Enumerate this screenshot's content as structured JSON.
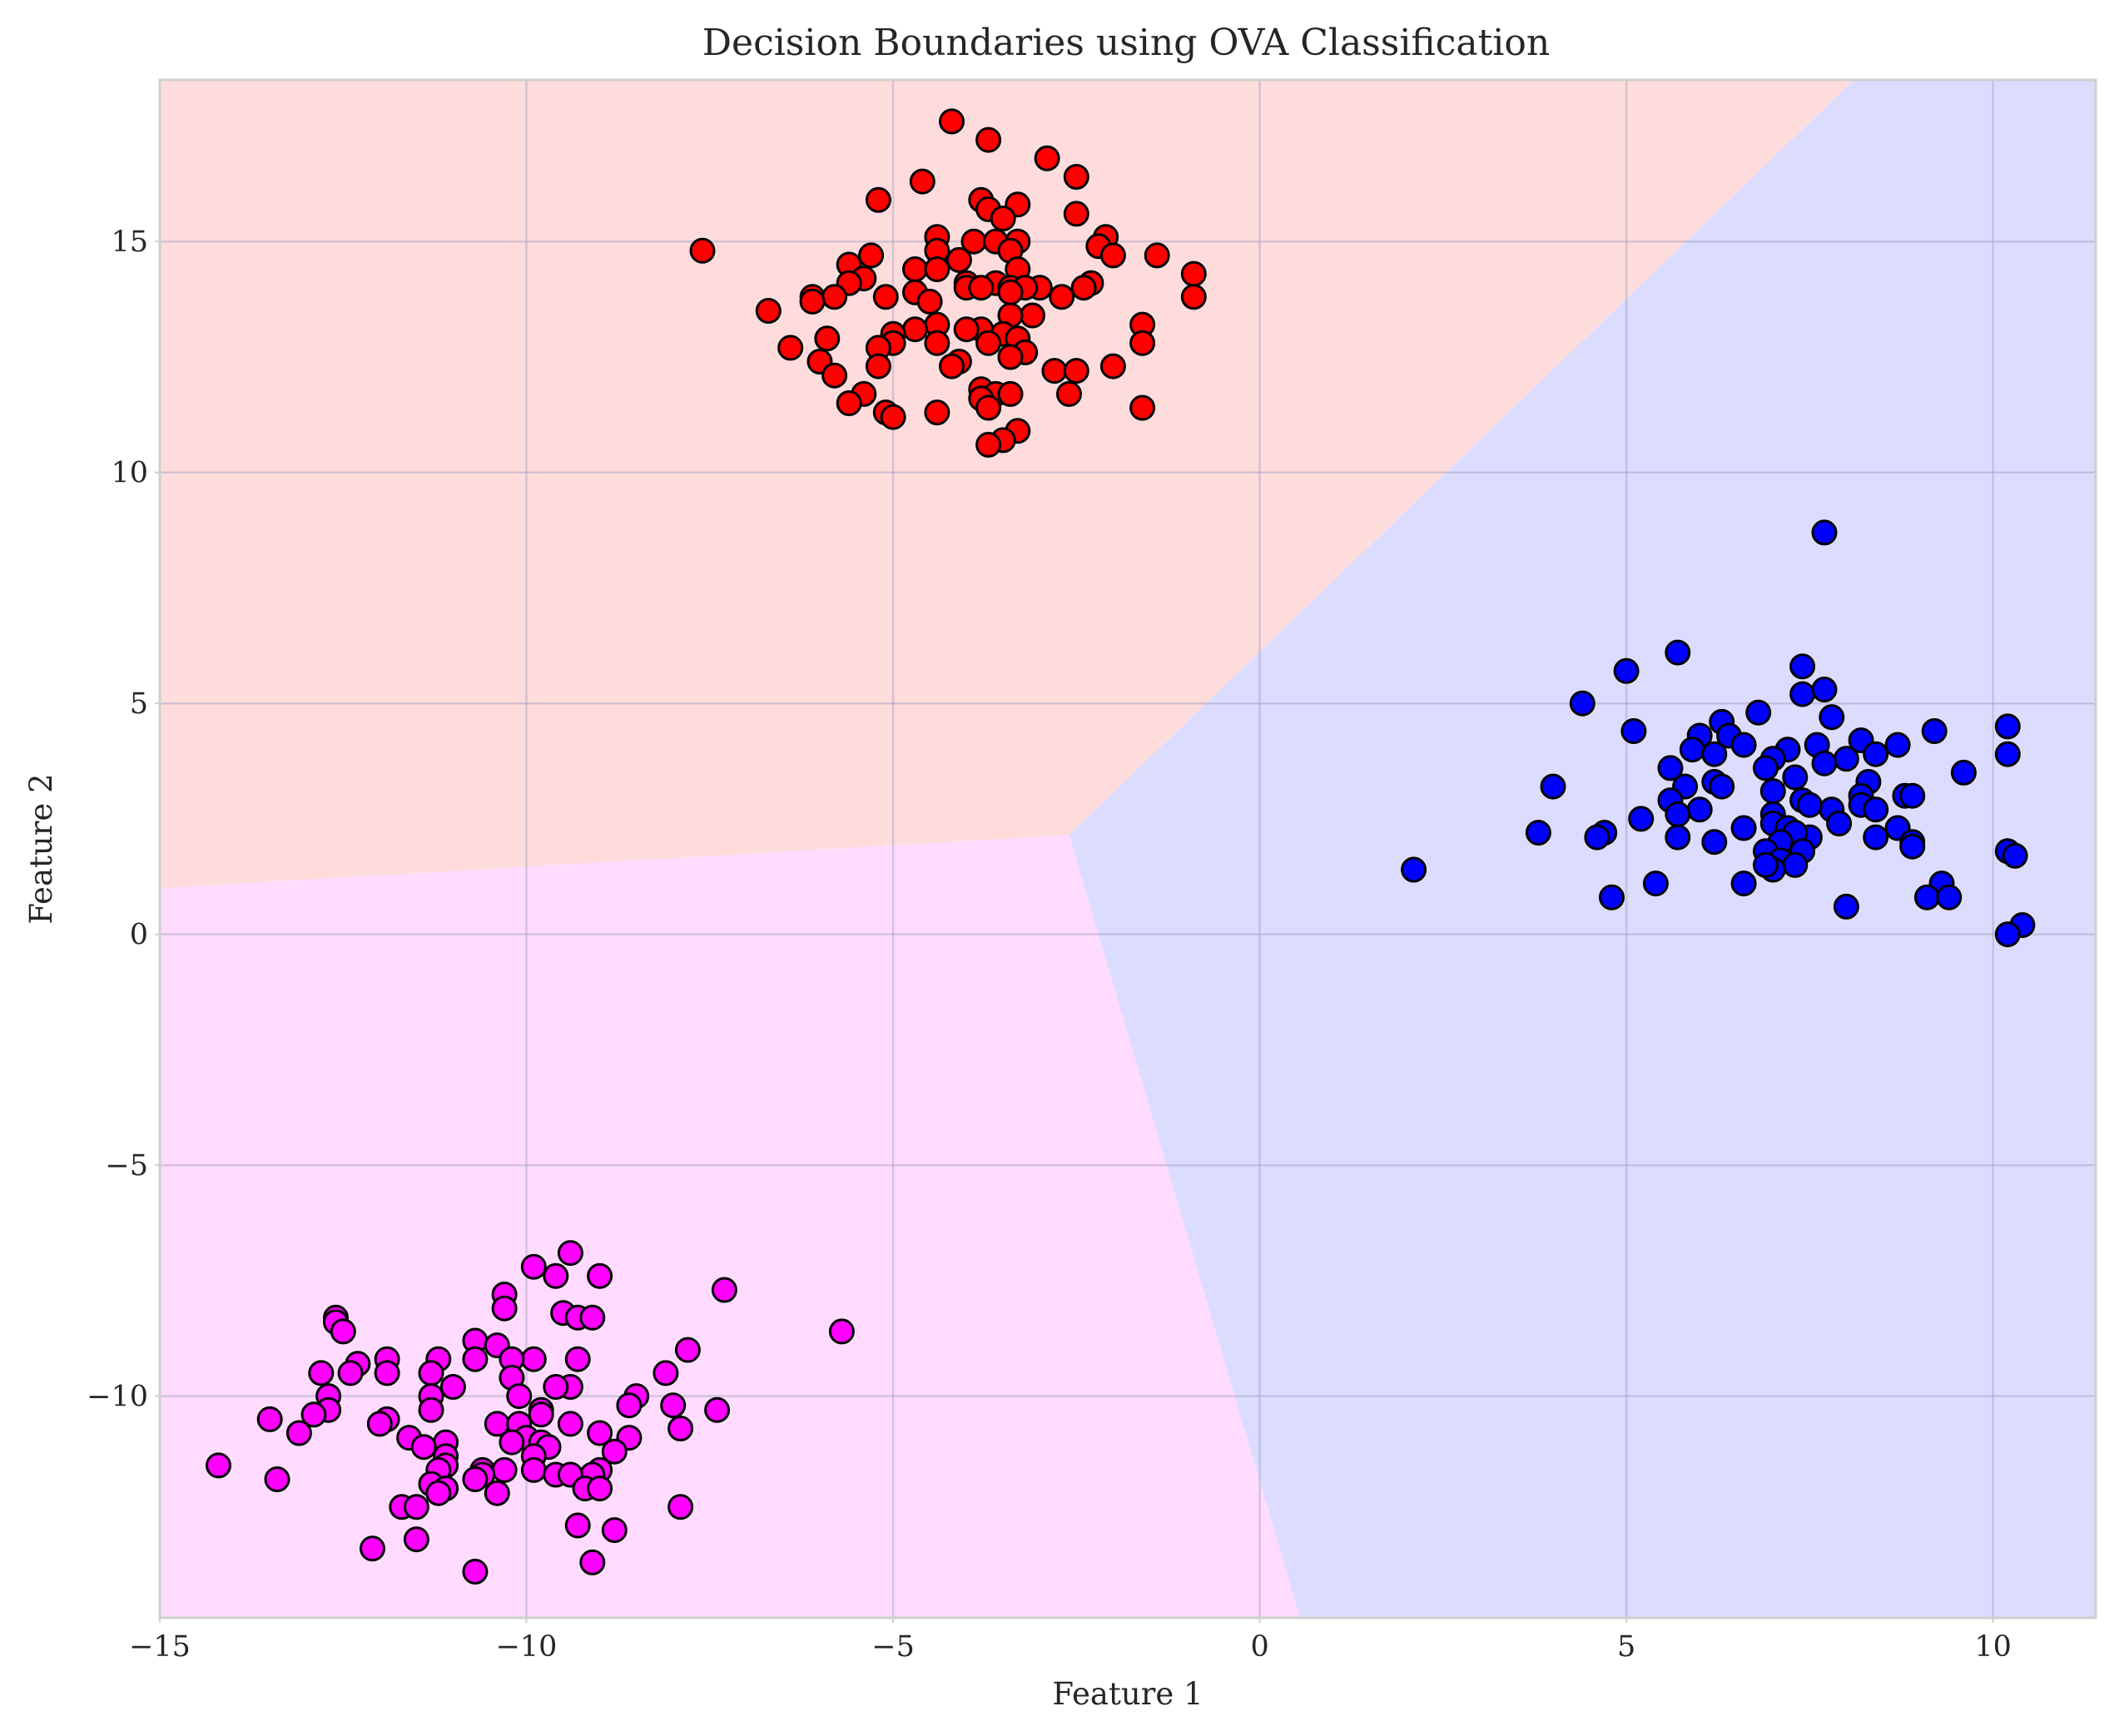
{
  "chart_data": {
    "type": "scatter",
    "title": "Decision Boundaries using OVA Classification",
    "xlabel": "Feature 1",
    "ylabel": "Feature 2",
    "xlim": [
      -15,
      11.4
    ],
    "ylim": [
      -14.8,
      18.5
    ],
    "xticks": [
      -15,
      -10,
      -5,
      0,
      5,
      10
    ],
    "yticks": [
      -10,
      -5,
      0,
      5,
      10,
      15
    ],
    "xtick_labels": [
      "−15",
      "−10",
      "−5",
      "0",
      "5",
      "10"
    ],
    "ytick_labels": [
      "−10",
      "−5",
      "0",
      "5",
      "10",
      "15"
    ],
    "grid": true,
    "regions": [
      {
        "color": "#ffdcdc",
        "polygon": [
          [
            -15,
            18.5
          ],
          [
            8.1,
            18.5
          ],
          [
            -2.6,
            2.15
          ],
          [
            -15,
            1.0
          ]
        ]
      },
      {
        "color": "#dcdcff",
        "polygon": [
          [
            8.1,
            18.5
          ],
          [
            11.4,
            18.5
          ],
          [
            11.4,
            -14.8
          ],
          [
            0.55,
            -14.8
          ],
          [
            -2.6,
            2.15
          ]
        ]
      },
      {
        "color": "#ffdcff",
        "polygon": [
          [
            -15,
            1.0
          ],
          [
            -2.6,
            2.15
          ],
          [
            0.55,
            -14.8
          ],
          [
            -15,
            -14.8
          ]
        ]
      }
    ],
    "series": [
      {
        "color": "#ff0000",
        "points": [
          [
            -4.2,
            17.6
          ],
          [
            -3.7,
            17.2
          ],
          [
            -2.9,
            16.8
          ],
          [
            -2.5,
            16.4
          ],
          [
            -4.6,
            16.3
          ],
          [
            -5.2,
            15.9
          ],
          [
            -3.8,
            15.9
          ],
          [
            -3.3,
            15.8
          ],
          [
            -3.7,
            15.7
          ],
          [
            -2.5,
            15.6
          ],
          [
            -3.5,
            15.5
          ],
          [
            -4.4,
            15.1
          ],
          [
            -2.1,
            15.1
          ],
          [
            -3.9,
            15.0
          ],
          [
            -3.6,
            15.0
          ],
          [
            -3.3,
            15.0
          ],
          [
            -2.2,
            14.9
          ],
          [
            -4.4,
            14.8
          ],
          [
            -3.4,
            14.8
          ],
          [
            -7.6,
            14.8
          ],
          [
            -5.3,
            14.7
          ],
          [
            -2.0,
            14.7
          ],
          [
            -1.4,
            14.7
          ],
          [
            -4.1,
            14.6
          ],
          [
            -5.6,
            14.5
          ],
          [
            -4.7,
            14.4
          ],
          [
            -4.4,
            14.4
          ],
          [
            -3.3,
            14.4
          ],
          [
            -5.4,
            14.2
          ],
          [
            -0.9,
            14.3
          ],
          [
            -2.3,
            14.1
          ],
          [
            -5.6,
            14.1
          ],
          [
            -4.0,
            14.1
          ],
          [
            -3.6,
            14.1
          ],
          [
            -3.4,
            14.0
          ],
          [
            -2.4,
            14.0
          ],
          [
            -3.0,
            14.0
          ],
          [
            -3.2,
            14.0
          ],
          [
            -4.0,
            14.0
          ],
          [
            -3.8,
            14.0
          ],
          [
            -6.1,
            13.8
          ],
          [
            -5.8,
            13.8
          ],
          [
            -5.1,
            13.8
          ],
          [
            -4.7,
            13.9
          ],
          [
            -4.5,
            13.7
          ],
          [
            -3.4,
            13.9
          ],
          [
            -2.7,
            13.8
          ],
          [
            -0.9,
            13.8
          ],
          [
            -6.1,
            13.7
          ],
          [
            -6.7,
            13.5
          ],
          [
            -3.1,
            13.4
          ],
          [
            -3.4,
            13.4
          ],
          [
            -4.4,
            13.2
          ],
          [
            -3.8,
            13.1
          ],
          [
            -4.7,
            13.1
          ],
          [
            -4.0,
            13.1
          ],
          [
            -3.5,
            13.0
          ],
          [
            -5.0,
            13.0
          ],
          [
            -1.6,
            13.2
          ],
          [
            -5.0,
            12.8
          ],
          [
            -5.9,
            12.9
          ],
          [
            -3.3,
            12.9
          ],
          [
            -3.7,
            12.8
          ],
          [
            -4.4,
            12.8
          ],
          [
            -1.6,
            12.8
          ],
          [
            -5.2,
            12.7
          ],
          [
            -6.4,
            12.7
          ],
          [
            -3.2,
            12.6
          ],
          [
            -3.4,
            12.5
          ],
          [
            -6.0,
            12.4
          ],
          [
            -4.1,
            12.4
          ],
          [
            -5.2,
            12.3
          ],
          [
            -4.2,
            12.3
          ],
          [
            -2.0,
            12.3
          ],
          [
            -2.8,
            12.2
          ],
          [
            -2.5,
            12.2
          ],
          [
            -5.8,
            12.1
          ],
          [
            -3.8,
            11.8
          ],
          [
            -5.4,
            11.7
          ],
          [
            -3.6,
            11.7
          ],
          [
            -3.4,
            11.7
          ],
          [
            -2.6,
            11.7
          ],
          [
            -3.8,
            11.6
          ],
          [
            -5.6,
            11.5
          ],
          [
            -1.6,
            11.4
          ],
          [
            -3.7,
            11.4
          ],
          [
            -4.4,
            11.3
          ],
          [
            -5.1,
            11.3
          ],
          [
            -5.0,
            11.2
          ],
          [
            -3.3,
            10.9
          ],
          [
            -3.5,
            10.7
          ],
          [
            -3.7,
            10.6
          ]
        ]
      },
      {
        "color": "#0000ff",
        "points": [
          [
            7.7,
            8.7
          ],
          [
            5.7,
            6.1
          ],
          [
            5.0,
            5.7
          ],
          [
            7.4,
            5.8
          ],
          [
            4.4,
            5.0
          ],
          [
            7.4,
            5.2
          ],
          [
            7.7,
            5.3
          ],
          [
            6.8,
            4.8
          ],
          [
            7.8,
            4.7
          ],
          [
            6.3,
            4.6
          ],
          [
            10.2,
            4.5
          ],
          [
            9.2,
            4.4
          ],
          [
            5.1,
            4.4
          ],
          [
            6.4,
            4.3
          ],
          [
            6.0,
            4.3
          ],
          [
            8.2,
            4.2
          ],
          [
            6.6,
            4.1
          ],
          [
            7.6,
            4.1
          ],
          [
            8.7,
            4.1
          ],
          [
            7.2,
            4.0
          ],
          [
            5.9,
            4.0
          ],
          [
            6.2,
            3.9
          ],
          [
            8.0,
            3.8
          ],
          [
            7.0,
            3.8
          ],
          [
            7.7,
            3.7
          ],
          [
            10.2,
            3.9
          ],
          [
            8.4,
            3.9
          ],
          [
            6.9,
            3.6
          ],
          [
            5.6,
            3.6
          ],
          [
            9.6,
            3.5
          ],
          [
            7.3,
            3.4
          ],
          [
            6.2,
            3.3
          ],
          [
            5.8,
            3.2
          ],
          [
            8.3,
            3.3
          ],
          [
            6.3,
            3.2
          ],
          [
            4.0,
            3.2
          ],
          [
            7.0,
            3.1
          ],
          [
            8.2,
            3.0
          ],
          [
            8.8,
            3.0
          ],
          [
            8.9,
            3.0
          ],
          [
            7.4,
            2.9
          ],
          [
            5.6,
            2.9
          ],
          [
            6.0,
            2.7
          ],
          [
            5.7,
            2.6
          ],
          [
            8.2,
            2.8
          ],
          [
            8.4,
            2.7
          ],
          [
            7.8,
            2.7
          ],
          [
            7.5,
            2.8
          ],
          [
            7.0,
            2.6
          ],
          [
            5.2,
            2.5
          ],
          [
            7.0,
            2.4
          ],
          [
            7.9,
            2.4
          ],
          [
            7.2,
            2.3
          ],
          [
            8.7,
            2.3
          ],
          [
            6.6,
            2.3
          ],
          [
            4.7,
            2.2
          ],
          [
            3.8,
            2.2
          ],
          [
            5.7,
            2.1
          ],
          [
            7.5,
            2.1
          ],
          [
            7.3,
            2.2
          ],
          [
            4.6,
            2.1
          ],
          [
            8.4,
            2.1
          ],
          [
            8.9,
            2.0
          ],
          [
            6.2,
            2.0
          ],
          [
            7.1,
            2.0
          ],
          [
            8.9,
            1.9
          ],
          [
            7.4,
            1.8
          ],
          [
            6.9,
            1.8
          ],
          [
            10.2,
            1.8
          ],
          [
            10.3,
            1.7
          ],
          [
            7.1,
            1.6
          ],
          [
            7.3,
            1.5
          ],
          [
            2.1,
            1.4
          ],
          [
            7.0,
            1.4
          ],
          [
            6.9,
            1.5
          ],
          [
            5.4,
            1.1
          ],
          [
            6.6,
            1.1
          ],
          [
            9.3,
            1.1
          ],
          [
            4.8,
            0.8
          ],
          [
            9.1,
            0.8
          ],
          [
            9.4,
            0.8
          ],
          [
            8.0,
            0.6
          ],
          [
            10.4,
            0.2
          ],
          [
            10.2,
            0.0
          ]
        ]
      },
      {
        "color": "#ff00ff",
        "points": [
          [
            -5.7,
            -8.6
          ],
          [
            -7.3,
            -7.7
          ],
          [
            -9.4,
            -6.9
          ],
          [
            -9.9,
            -7.2
          ],
          [
            -9.6,
            -7.4
          ],
          [
            -9.0,
            -7.4
          ],
          [
            -10.3,
            -7.8
          ],
          [
            -10.3,
            -8.1
          ],
          [
            -9.5,
            -8.2
          ],
          [
            -9.3,
            -8.3
          ],
          [
            -9.1,
            -8.3
          ],
          [
            -12.6,
            -8.3
          ],
          [
            -12.6,
            -8.4
          ],
          [
            -12.5,
            -8.6
          ],
          [
            -10.7,
            -8.8
          ],
          [
            -10.4,
            -8.9
          ],
          [
            -7.8,
            -9.0
          ],
          [
            -9.9,
            -9.2
          ],
          [
            -10.7,
            -9.2
          ],
          [
            -9.3,
            -9.2
          ],
          [
            -11.9,
            -9.2
          ],
          [
            -11.2,
            -9.2
          ],
          [
            -12.3,
            -9.3
          ],
          [
            -10.2,
            -9.2
          ],
          [
            -12.4,
            -9.5
          ],
          [
            -12.8,
            -9.5
          ],
          [
            -11.9,
            -9.5
          ],
          [
            -11.3,
            -9.5
          ],
          [
            -8.1,
            -9.5
          ],
          [
            -10.2,
            -9.6
          ],
          [
            -11.0,
            -9.8
          ],
          [
            -9.4,
            -9.8
          ],
          [
            -9.6,
            -9.8
          ],
          [
            -11.3,
            -10.0
          ],
          [
            -10.1,
            -10.0
          ],
          [
            -12.7,
            -10.0
          ],
          [
            -8.5,
            -10.0
          ],
          [
            -8.6,
            -10.2
          ],
          [
            -8.0,
            -10.2
          ],
          [
            -7.4,
            -10.3
          ],
          [
            -12.7,
            -10.3
          ],
          [
            -11.3,
            -10.3
          ],
          [
            -12.9,
            -10.4
          ],
          [
            -9.8,
            -10.3
          ],
          [
            -13.5,
            -10.5
          ],
          [
            -11.9,
            -10.5
          ],
          [
            -12.0,
            -10.6
          ],
          [
            -10.4,
            -10.6
          ],
          [
            -10.1,
            -10.6
          ],
          [
            -9.4,
            -10.6
          ],
          [
            -9.8,
            -10.4
          ],
          [
            -7.9,
            -10.7
          ],
          [
            -13.1,
            -10.8
          ],
          [
            -9.0,
            -10.8
          ],
          [
            -11.6,
            -10.9
          ],
          [
            -10.0,
            -10.9
          ],
          [
            -11.1,
            -11.0
          ],
          [
            -10.2,
            -11.0
          ],
          [
            -9.8,
            -11.0
          ],
          [
            -8.6,
            -10.9
          ],
          [
            -11.4,
            -11.1
          ],
          [
            -9.7,
            -11.1
          ],
          [
            -8.8,
            -11.2
          ],
          [
            -11.1,
            -11.3
          ],
          [
            -9.9,
            -11.3
          ],
          [
            -14.2,
            -11.5
          ],
          [
            -11.1,
            -11.5
          ],
          [
            -11.2,
            -11.6
          ],
          [
            -10.6,
            -11.6
          ],
          [
            -10.3,
            -11.6
          ],
          [
            -9.9,
            -11.6
          ],
          [
            -9.6,
            -11.7
          ],
          [
            -9.0,
            -11.6
          ],
          [
            -9.1,
            -11.7
          ],
          [
            -10.6,
            -11.7
          ],
          [
            -13.4,
            -11.8
          ],
          [
            -10.7,
            -11.8
          ],
          [
            -9.4,
            -11.7
          ],
          [
            -11.3,
            -11.9
          ],
          [
            -11.1,
            -12.0
          ],
          [
            -9.2,
            -12.0
          ],
          [
            -9.0,
            -12.0
          ],
          [
            -10.4,
            -12.1
          ],
          [
            -11.2,
            -12.1
          ],
          [
            -11.7,
            -12.4
          ],
          [
            -11.5,
            -12.4
          ],
          [
            -7.9,
            -12.4
          ],
          [
            -9.3,
            -12.8
          ],
          [
            -8.8,
            -12.9
          ],
          [
            -11.5,
            -13.1
          ],
          [
            -12.1,
            -13.3
          ],
          [
            -9.1,
            -13.6
          ],
          [
            -10.7,
            -13.8
          ]
        ]
      }
    ]
  }
}
